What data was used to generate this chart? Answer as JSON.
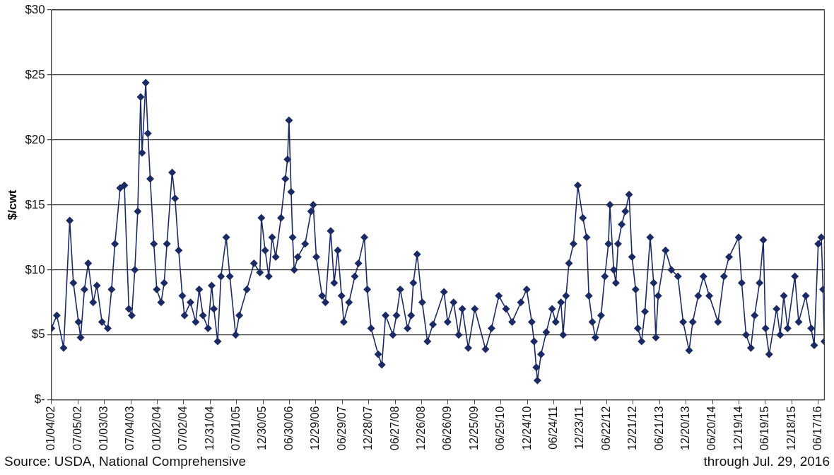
{
  "chart_data": {
    "type": "line",
    "ylabel": "$/cwt",
    "annotations": [
      "Source: USDA, National Comprehensive",
      "through Jul. 29, 2016"
    ],
    "xlim": [
      "2002-01-04",
      "2016-07-29"
    ],
    "xticks": [
      {
        "value": "2002-01-04",
        "label": "01/04/02"
      },
      {
        "value": "2002-07-05",
        "label": "07/05/02"
      },
      {
        "value": "2003-01-03",
        "label": "01/03/03"
      },
      {
        "value": "2003-07-04",
        "label": "07/04/03"
      },
      {
        "value": "2004-01-02",
        "label": "01/02/04"
      },
      {
        "value": "2004-07-02",
        "label": "07/02/04"
      },
      {
        "value": "2004-12-31",
        "label": "12/31/04"
      },
      {
        "value": "2005-07-01",
        "label": "07/01/05"
      },
      {
        "value": "2005-12-30",
        "label": "12/30/05"
      },
      {
        "value": "2006-06-30",
        "label": "06/30/06"
      },
      {
        "value": "2006-12-29",
        "label": "12/29/06"
      },
      {
        "value": "2007-06-29",
        "label": "06/29/07"
      },
      {
        "value": "2007-12-28",
        "label": "12/28/07"
      },
      {
        "value": "2008-06-27",
        "label": "06/27/08"
      },
      {
        "value": "2008-12-26",
        "label": "12/26/08"
      },
      {
        "value": "2009-06-26",
        "label": "06/26/09"
      },
      {
        "value": "2009-12-25",
        "label": "12/25/09"
      },
      {
        "value": "2010-06-25",
        "label": "06/25/10"
      },
      {
        "value": "2010-12-24",
        "label": "12/24/10"
      },
      {
        "value": "2011-06-24",
        "label": "06/24/11"
      },
      {
        "value": "2011-12-23",
        "label": "12/23/11"
      },
      {
        "value": "2012-06-22",
        "label": "06/22/12"
      },
      {
        "value": "2012-12-21",
        "label": "12/21/12"
      },
      {
        "value": "2013-06-21",
        "label": "06/21/13"
      },
      {
        "value": "2013-12-20",
        "label": "12/20/13"
      },
      {
        "value": "2014-06-20",
        "label": "06/20/14"
      },
      {
        "value": "2014-12-19",
        "label": "12/19/14"
      },
      {
        "value": "2015-06-19",
        "label": "06/19/15"
      },
      {
        "value": "2015-12-18",
        "label": "12/18/15"
      },
      {
        "value": "2016-06-17",
        "label": "06/17/16"
      }
    ],
    "ylim": [
      0,
      30
    ],
    "yticks": [
      {
        "value": 0,
        "label": "$-"
      },
      {
        "value": 5,
        "label": "$5"
      },
      {
        "value": 10,
        "label": "$10"
      },
      {
        "value": 15,
        "label": "$15"
      },
      {
        "value": 20,
        "label": "$20"
      },
      {
        "value": 25,
        "label": "$25"
      },
      {
        "value": 30,
        "label": "$30"
      }
    ],
    "grid": "y",
    "marker": "diamond",
    "line_style": "solid",
    "series": [
      {
        "color": "#1c2a64",
        "x": [
          "2002-01-04",
          "2002-02-10",
          "2002-03-29",
          "2002-05-10",
          "2002-06-04",
          "2002-07-09",
          "2002-07-24",
          "2002-08-19",
          "2002-09-14",
          "2002-10-18",
          "2002-11-13",
          "2002-12-18",
          "2003-01-27",
          "2003-02-22",
          "2003-03-17",
          "2003-04-22",
          "2003-05-21",
          "2003-06-21",
          "2003-07-11",
          "2003-08-01",
          "2003-08-21",
          "2003-09-10",
          "2003-09-20",
          "2003-10-15",
          "2003-10-30",
          "2003-11-15",
          "2003-12-10",
          "2003-12-30",
          "2004-01-29",
          "2004-02-19",
          "2004-03-09",
          "2004-04-14",
          "2004-05-04",
          "2004-05-29",
          "2004-06-23",
          "2004-07-08",
          "2004-08-18",
          "2004-09-23",
          "2004-10-17",
          "2004-11-12",
          "2004-12-17",
          "2005-01-11",
          "2005-01-26",
          "2005-02-21",
          "2005-03-16",
          "2005-04-21",
          "2005-05-16",
          "2005-06-25",
          "2005-07-20",
          "2005-09-10",
          "2005-10-29",
          "2005-12-09",
          "2005-12-19",
          "2006-01-14",
          "2006-02-08",
          "2006-03-03",
          "2006-03-28",
          "2006-05-03",
          "2006-06-02",
          "2006-06-17",
          "2006-06-27",
          "2006-07-12",
          "2006-07-22",
          "2006-08-02",
          "2006-08-27",
          "2006-10-16",
          "2006-11-26",
          "2006-12-11",
          "2007-01-01",
          "2007-02-10",
          "2007-03-05",
          "2007-04-10",
          "2007-05-04",
          "2007-05-29",
          "2007-06-24",
          "2007-07-09",
          "2007-08-14",
          "2007-09-23",
          "2007-10-18",
          "2007-11-28",
          "2007-12-18",
          "2008-01-13",
          "2008-03-02",
          "2008-03-27",
          "2008-04-22",
          "2008-06-11",
          "2008-07-06",
          "2008-08-01",
          "2008-09-20",
          "2008-10-15",
          "2008-10-30",
          "2008-11-25",
          "2008-12-30",
          "2009-02-04",
          "2009-03-14",
          "2009-05-29",
          "2009-06-23",
          "2009-08-03",
          "2009-09-07",
          "2009-10-02",
          "2009-11-12",
          "2009-12-27",
          "2010-03-11",
          "2010-04-21",
          "2010-06-10",
          "2010-07-30",
          "2010-09-10",
          "2010-11-09",
          "2010-12-19",
          "2011-01-23",
          "2011-02-08",
          "2011-02-23",
          "2011-03-03",
          "2011-03-28",
          "2011-05-03",
          "2011-06-12",
          "2011-07-07",
          "2011-08-12",
          "2011-08-27",
          "2011-09-16",
          "2011-10-06",
          "2011-11-06",
          "2011-12-06",
          "2012-01-10",
          "2012-02-05",
          "2012-02-20",
          "2012-03-15",
          "2012-04-05",
          "2012-05-14",
          "2012-06-09",
          "2012-07-04",
          "2012-07-14",
          "2012-08-09",
          "2012-08-24",
          "2012-09-08",
          "2012-10-03",
          "2012-10-28",
          "2012-11-23",
          "2012-12-13",
          "2013-01-07",
          "2013-01-22",
          "2013-02-17",
          "2013-03-12",
          "2013-04-17",
          "2013-05-11",
          "2013-05-26",
          "2013-06-11",
          "2013-08-01",
          "2013-09-10",
          "2013-10-25",
          "2013-11-30",
          "2014-01-10",
          "2014-02-04",
          "2014-03-14",
          "2014-04-19",
          "2014-05-29",
          "2014-07-28",
          "2014-09-07",
          "2014-10-12",
          "2014-12-17",
          "2015-01-07",
          "2015-02-06",
          "2015-03-11",
          "2015-04-06",
          "2015-05-10",
          "2015-06-05",
          "2015-06-20",
          "2015-07-15",
          "2015-09-04",
          "2015-09-29",
          "2015-10-24",
          "2015-11-19",
          "2016-01-08",
          "2016-02-03",
          "2016-03-23",
          "2016-04-29",
          "2016-05-20",
          "2016-06-17",
          "2016-07-08",
          "2016-07-20",
          "2016-07-29"
        ],
        "values": [
          5.5,
          6.5,
          4,
          13.8,
          9,
          6,
          4.8,
          8.5,
          10.5,
          7.5,
          8.8,
          6,
          5.5,
          8.5,
          12,
          16.3,
          16.5,
          7,
          6.5,
          10,
          14.5,
          23.3,
          19,
          24.4,
          20.5,
          17,
          12,
          8.5,
          7.5,
          9,
          12,
          17.5,
          15.5,
          11.5,
          8,
          6.5,
          7.5,
          6,
          8.5,
          6.5,
          5.5,
          8.8,
          7,
          4.5,
          9.5,
          12.5,
          9.5,
          5,
          6.5,
          8.5,
          10.5,
          9.8,
          14,
          11.5,
          9.5,
          12.5,
          11,
          14,
          17,
          18.5,
          21.5,
          16,
          12.5,
          10,
          11,
          12,
          14.5,
          15,
          11,
          8,
          7.5,
          13,
          9,
          11.5,
          8,
          6,
          7.5,
          9.5,
          10.5,
          12.5,
          8.5,
          5.5,
          3.5,
          2.7,
          6.5,
          5,
          6.5,
          8.5,
          5.5,
          6.5,
          9,
          11.2,
          7.5,
          4.5,
          5.8,
          8.3,
          6,
          7.5,
          5,
          7,
          4,
          7,
          3.9,
          5.5,
          8,
          7,
          6,
          7.5,
          8.5,
          6,
          4.5,
          2.5,
          1.5,
          3.5,
          5.2,
          7,
          6,
          7.5,
          5,
          8,
          10.5,
          12,
          16.5,
          14,
          12.5,
          8,
          6,
          4.8,
          6.5,
          9.5,
          12,
          15,
          10,
          9,
          12,
          13.5,
          14.5,
          15.8,
          11,
          8.5,
          5.5,
          4.5,
          6.8,
          12.5,
          9,
          4.8,
          8,
          11.5,
          10,
          9.5,
          6,
          3.8,
          6,
          8,
          9.5,
          8,
          6,
          9.5,
          11,
          12.5,
          9,
          5,
          4,
          6.5,
          9,
          12.3,
          5.5,
          3.5,
          7,
          5,
          8,
          5.5,
          9.5,
          6,
          8,
          5.5,
          4.2,
          12,
          12.5,
          8.5,
          4.5
        ]
      }
    ]
  }
}
